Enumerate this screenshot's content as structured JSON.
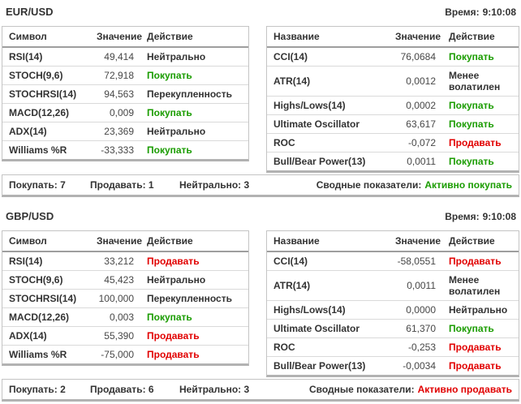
{
  "colors": {
    "buy": "#1a9c00",
    "sell": "#e10000",
    "neutral": "#333333"
  },
  "sections": [
    {
      "pair": "EUR/USD",
      "time_label": "Время:",
      "time_value": "9:10:08",
      "left_table": {
        "headers": {
          "name": "Символ",
          "value": "Значение",
          "action": "Действие"
        },
        "rows": [
          {
            "name": "RSI(14)",
            "value": "49,414",
            "action": "Нейтрально",
            "tone": "neutral"
          },
          {
            "name": "STOCH(9,6)",
            "value": "72,918",
            "action": "Покупать",
            "tone": "buy"
          },
          {
            "name": "STOCHRSI(14)",
            "value": "94,563",
            "action": "Перекупленность",
            "tone": "neutral"
          },
          {
            "name": "MACD(12,26)",
            "value": "0,009",
            "action": "Покупать",
            "tone": "buy"
          },
          {
            "name": "ADX(14)",
            "value": "23,369",
            "action": "Нейтрально",
            "tone": "neutral"
          },
          {
            "name": "Williams %R",
            "value": "-33,333",
            "action": "Покупать",
            "tone": "buy"
          }
        ]
      },
      "right_table": {
        "headers": {
          "name": "Название",
          "value": "Значение",
          "action": "Действие"
        },
        "rows": [
          {
            "name": "CCI(14)",
            "value": "76,0684",
            "action": "Покупать",
            "tone": "buy"
          },
          {
            "name": "ATR(14)",
            "value": "0,0012",
            "action": "Менее волатилен",
            "tone": "neutral"
          },
          {
            "name": "Highs/Lows(14)",
            "value": "0,0002",
            "action": "Покупать",
            "tone": "buy"
          },
          {
            "name": "Ultimate Oscillator",
            "value": "63,617",
            "action": "Покупать",
            "tone": "buy"
          },
          {
            "name": "ROC",
            "value": "-0,072",
            "action": "Продавать",
            "tone": "sell"
          },
          {
            "name": "Bull/Bear Power(13)",
            "value": "0,0011",
            "action": "Покупать",
            "tone": "buy"
          }
        ]
      },
      "summary": {
        "buy_label": "Покупать: 7",
        "sell_label": "Продавать: 1",
        "neutral_label": "Нейтрально: 3",
        "overall_label": "Сводные показатели:",
        "overall_value": "Активно покупать",
        "overall_tone": "buy"
      }
    },
    {
      "pair": "GBP/USD",
      "time_label": "Время:",
      "time_value": "9:10:08",
      "left_table": {
        "headers": {
          "name": "Символ",
          "value": "Значение",
          "action": "Действие"
        },
        "rows": [
          {
            "name": "RSI(14)",
            "value": "33,212",
            "action": "Продавать",
            "tone": "sell"
          },
          {
            "name": "STOCH(9,6)",
            "value": "45,423",
            "action": "Нейтрально",
            "tone": "neutral"
          },
          {
            "name": "STOCHRSI(14)",
            "value": "100,000",
            "action": "Перекупленность",
            "tone": "neutral"
          },
          {
            "name": "MACD(12,26)",
            "value": "0,003",
            "action": "Покупать",
            "tone": "buy"
          },
          {
            "name": "ADX(14)",
            "value": "55,390",
            "action": "Продавать",
            "tone": "sell"
          },
          {
            "name": "Williams %R",
            "value": "-75,000",
            "action": "Продавать",
            "tone": "sell"
          }
        ]
      },
      "right_table": {
        "headers": {
          "name": "Название",
          "value": "Значение",
          "action": "Действие"
        },
        "rows": [
          {
            "name": "CCI(14)",
            "value": "-58,0551",
            "action": "Продавать",
            "tone": "sell"
          },
          {
            "name": "ATR(14)",
            "value": "0,0011",
            "action": "Менее волатилен",
            "tone": "neutral"
          },
          {
            "name": "Highs/Lows(14)",
            "value": "0,0000",
            "action": "Нейтрально",
            "tone": "neutral"
          },
          {
            "name": "Ultimate Oscillator",
            "value": "61,370",
            "action": "Покупать",
            "tone": "buy"
          },
          {
            "name": "ROC",
            "value": "-0,253",
            "action": "Продавать",
            "tone": "sell"
          },
          {
            "name": "Bull/Bear Power(13)",
            "value": "-0,0034",
            "action": "Продавать",
            "tone": "sell"
          }
        ]
      },
      "summary": {
        "buy_label": "Покупать: 2",
        "sell_label": "Продавать: 6",
        "neutral_label": "Нейтрально: 3",
        "overall_label": "Сводные показатели:",
        "overall_value": "Активно продавать",
        "overall_tone": "sell"
      }
    }
  ]
}
